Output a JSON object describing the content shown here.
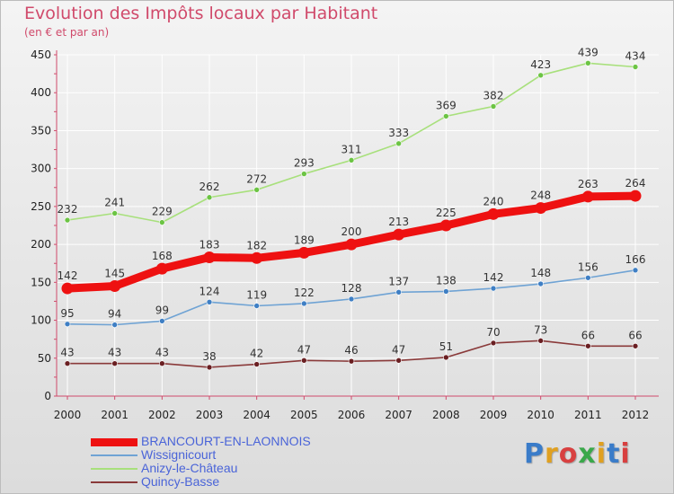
{
  "header": {
    "title": "Evolution des Impôts locaux par Habitant",
    "subtitle": "(en € et par an)"
  },
  "colors": {
    "title": "#d04a6b",
    "axis": "#d04a6b",
    "grid": "#ffffff",
    "legend_text": "#4a64d8"
  },
  "logo": {
    "text": "Proxiti",
    "letter_colors": [
      "#3a7cc9",
      "#e0a020",
      "#d84040",
      "#3aa84a",
      "#e0a020",
      "#3a7cc9",
      "#d84040"
    ]
  },
  "chart_data": {
    "type": "line",
    "title": "Evolution des Impôts locaux par Habitant",
    "subtitle": "(en € et par an)",
    "xlabel": "",
    "ylabel": "",
    "x": [
      "2000",
      "2001",
      "2002",
      "2003",
      "2004",
      "2005",
      "2006",
      "2007",
      "2008",
      "2009",
      "2010",
      "2011",
      "2012"
    ],
    "ylim": [
      0,
      450
    ],
    "yticks": [
      0,
      50,
      100,
      150,
      200,
      250,
      300,
      350,
      400,
      450
    ],
    "grid": true,
    "legend_position": "bottom-left",
    "series": [
      {
        "name": "BRANCOURT-EN-LAONNOIS",
        "values": [
          142,
          145,
          168,
          183,
          182,
          189,
          200,
          213,
          225,
          240,
          248,
          263,
          264
        ],
        "color": "#ee1111",
        "marker": "#ee1111",
        "width": "thick"
      },
      {
        "name": "Wissignicourt",
        "values": [
          95,
          94,
          99,
          124,
          119,
          122,
          128,
          137,
          138,
          142,
          148,
          156,
          166
        ],
        "color": "#6fa3d4",
        "marker": "#3f7fc4",
        "width": "thin"
      },
      {
        "name": "Anizy-le-Château",
        "values": [
          232,
          241,
          229,
          262,
          272,
          293,
          311,
          333,
          369,
          382,
          423,
          439,
          434
        ],
        "color": "#a8e07c",
        "marker": "#6cc444",
        "width": "thin"
      },
      {
        "name": "Quincy-Basse",
        "values": [
          43,
          43,
          43,
          38,
          42,
          47,
          46,
          47,
          51,
          70,
          73,
          66,
          66
        ],
        "color": "#8a3a3a",
        "marker": "#6a1f22",
        "width": "thin"
      }
    ]
  }
}
